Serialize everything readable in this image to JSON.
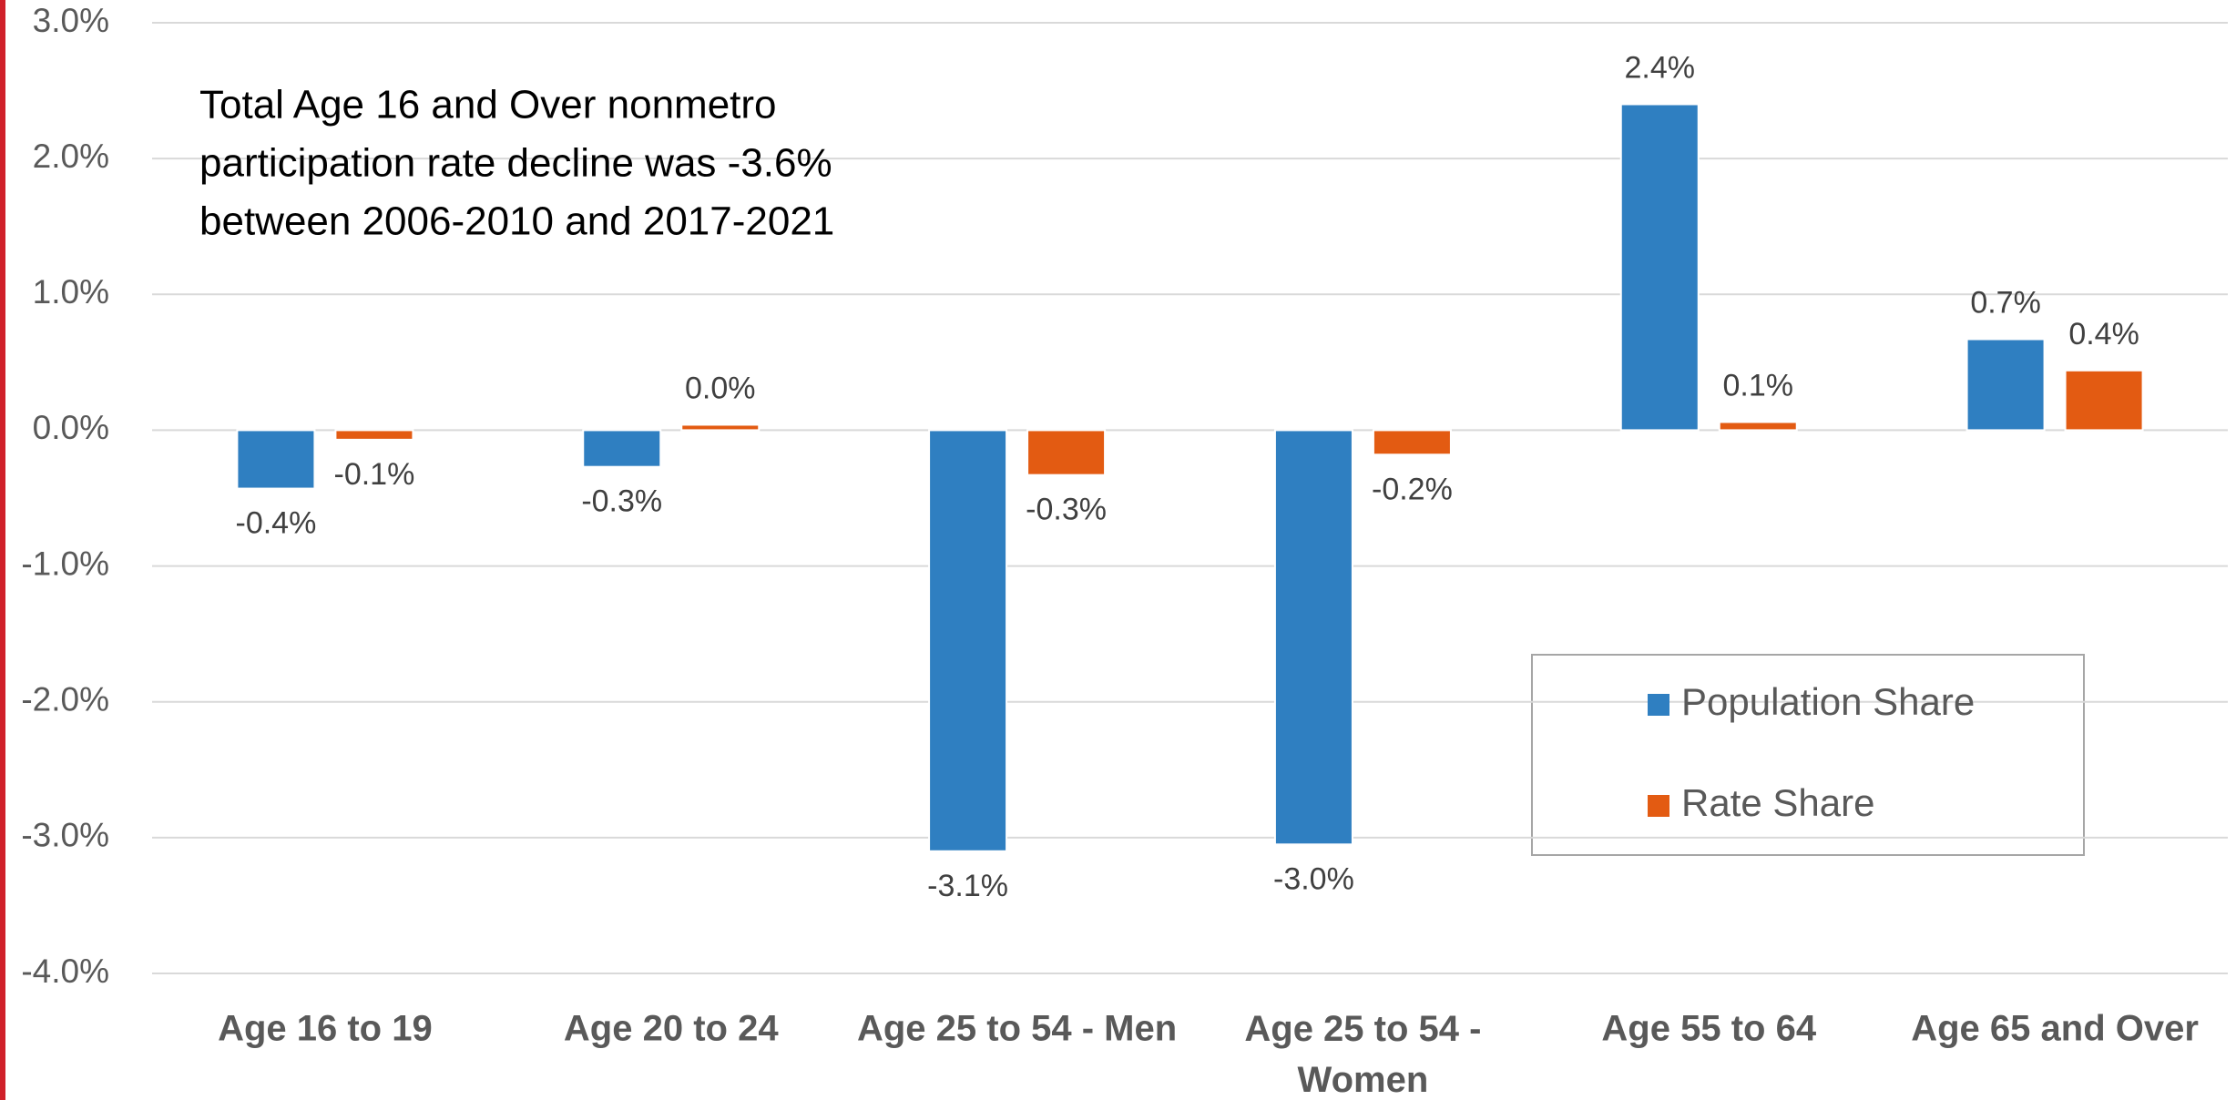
{
  "chart_data": {
    "type": "bar",
    "annotation": [
      "Total Age 16 and Over nonmetro",
      "participation rate decline was -3.6%",
      "between 2006-2010 and 2017-2021"
    ],
    "categories": [
      "Age 16 to 19",
      "Age 20 to 24",
      "Age 25 to 54 - Men",
      "Age 25 to 54 - Women",
      "Age 55 to 64",
      "Age 65 and Over"
    ],
    "series": [
      {
        "name": "Population Share",
        "color": "#2f7fc1",
        "values": [
          -0.43,
          -0.27,
          -3.1,
          -3.05,
          2.4,
          0.67
        ],
        "value_labels": [
          "-0.4%",
          "-0.3%",
          "-3.1%",
          "-3.0%",
          "2.4%",
          "0.7%"
        ]
      },
      {
        "name": "Rate Share",
        "color": "#e35b12",
        "values": [
          -0.07,
          0.04,
          -0.33,
          -0.18,
          0.06,
          0.44
        ],
        "value_labels": [
          "-0.1%",
          "0.0%",
          "-0.3%",
          "-0.2%",
          "0.1%",
          "0.4%"
        ]
      }
    ],
    "ylim": [
      -4,
      3
    ],
    "yticks": [
      {
        "value": -4,
        "label": "-4.0%"
      },
      {
        "value": -3,
        "label": "-3.0%"
      },
      {
        "value": -2,
        "label": "-2.0%"
      },
      {
        "value": -1,
        "label": "-1.0%"
      },
      {
        "value": 0,
        "label": "0.0%"
      },
      {
        "value": 1,
        "label": "1.0%"
      },
      {
        "value": 2,
        "label": "2.0%"
      },
      {
        "value": 3,
        "label": "3.0%"
      }
    ],
    "grid": true
  }
}
